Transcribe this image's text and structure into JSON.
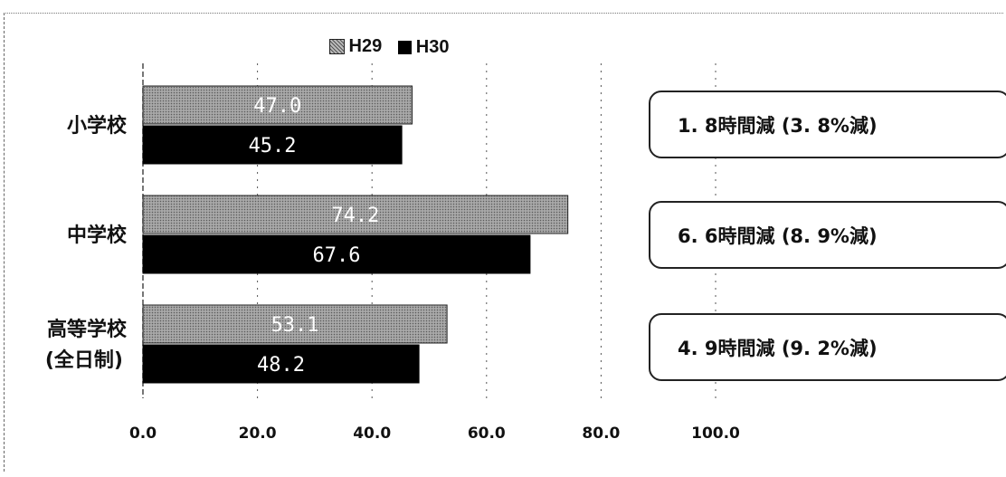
{
  "chart_data": {
    "type": "bar",
    "orientation": "horizontal",
    "categories": [
      "小学校",
      "中学校",
      "高等学校\n(全日制)"
    ],
    "series": [
      {
        "name": "H29",
        "values": [
          47.0,
          74.2,
          53.1
        ],
        "value_labels": [
          "47.0",
          "74.2",
          "53.1"
        ],
        "color": "#8a8a8a",
        "pattern": "dotted"
      },
      {
        "name": "H30",
        "values": [
          45.2,
          67.6,
          48.2
        ],
        "value_labels": [
          "45.2",
          "67.6",
          "48.2"
        ],
        "color": "#000000"
      }
    ],
    "xlim": [
      0,
      100
    ],
    "x_ticks": [
      "0.0",
      "20.0",
      "40.0",
      "60.0",
      "80.0",
      "100.0"
    ],
    "x_tick_values": [
      0,
      20,
      40,
      60,
      80,
      100
    ],
    "grid": "vertical dotted",
    "legend_position": "top"
  },
  "annotations": [
    "1. 8時間減 (3. 8%減)",
    "6. 6時間減 (8. 9%減)",
    "4. 9時間減 (9. 2%減)"
  ]
}
